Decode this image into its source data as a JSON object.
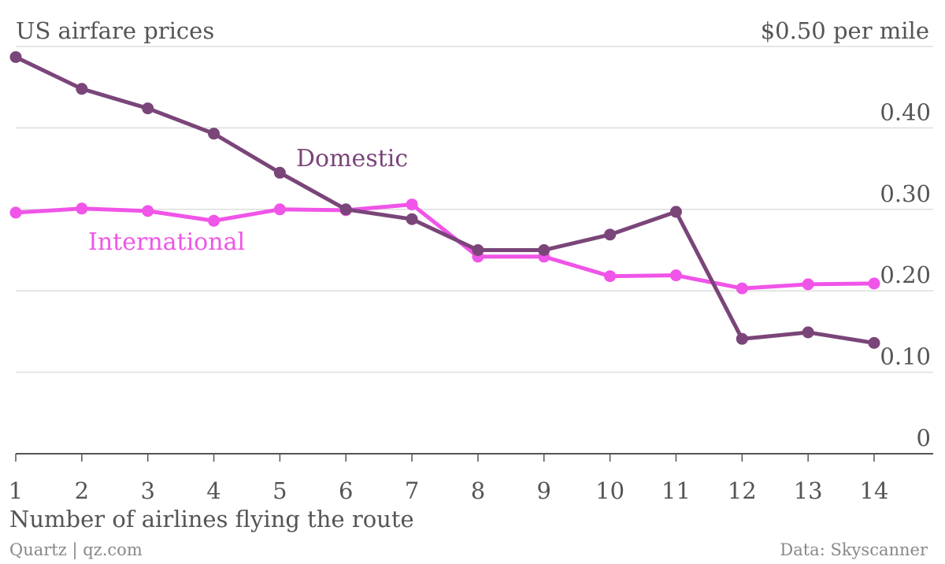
{
  "header": {
    "title": "US airfare prices",
    "unit_label": "$0.50 per mile"
  },
  "footer": {
    "source": "Quartz | qz.com",
    "credit": "Data: Skyscanner"
  },
  "chart_data": {
    "type": "line",
    "title": "US airfare prices",
    "xlabel": "Number of airlines flying the route",
    "ylabel": "",
    "x": [
      1,
      2,
      3,
      4,
      5,
      6,
      7,
      8,
      9,
      10,
      11,
      12,
      13,
      14
    ],
    "x_tick_labels": [
      "1",
      "2",
      "3",
      "4",
      "5",
      "6",
      "7",
      "8",
      "9",
      "10",
      "11",
      "12",
      "13",
      "14"
    ],
    "y_ticks": [
      0,
      0.1,
      0.2,
      0.3,
      0.4,
      0.5
    ],
    "y_tick_labels": [
      "0",
      "0.10",
      "0.20",
      "0.30",
      "0.40",
      "$0.50 per mile"
    ],
    "ylim": [
      0,
      0.5
    ],
    "xlim": [
      1,
      14
    ],
    "grid": true,
    "series": [
      {
        "name": "Domestic",
        "color": "#7a4579",
        "values": [
          0.487,
          0.448,
          0.424,
          0.393,
          0.345,
          0.3,
          0.288,
          0.25,
          0.25,
          0.269,
          0.297,
          0.141,
          0.149,
          0.136
        ]
      },
      {
        "name": "International",
        "color": "#f054e8",
        "values": [
          0.296,
          0.301,
          0.298,
          0.286,
          0.3,
          0.299,
          0.306,
          0.242,
          0.242,
          0.218,
          0.219,
          0.203,
          0.208,
          0.209
        ]
      }
    ]
  }
}
